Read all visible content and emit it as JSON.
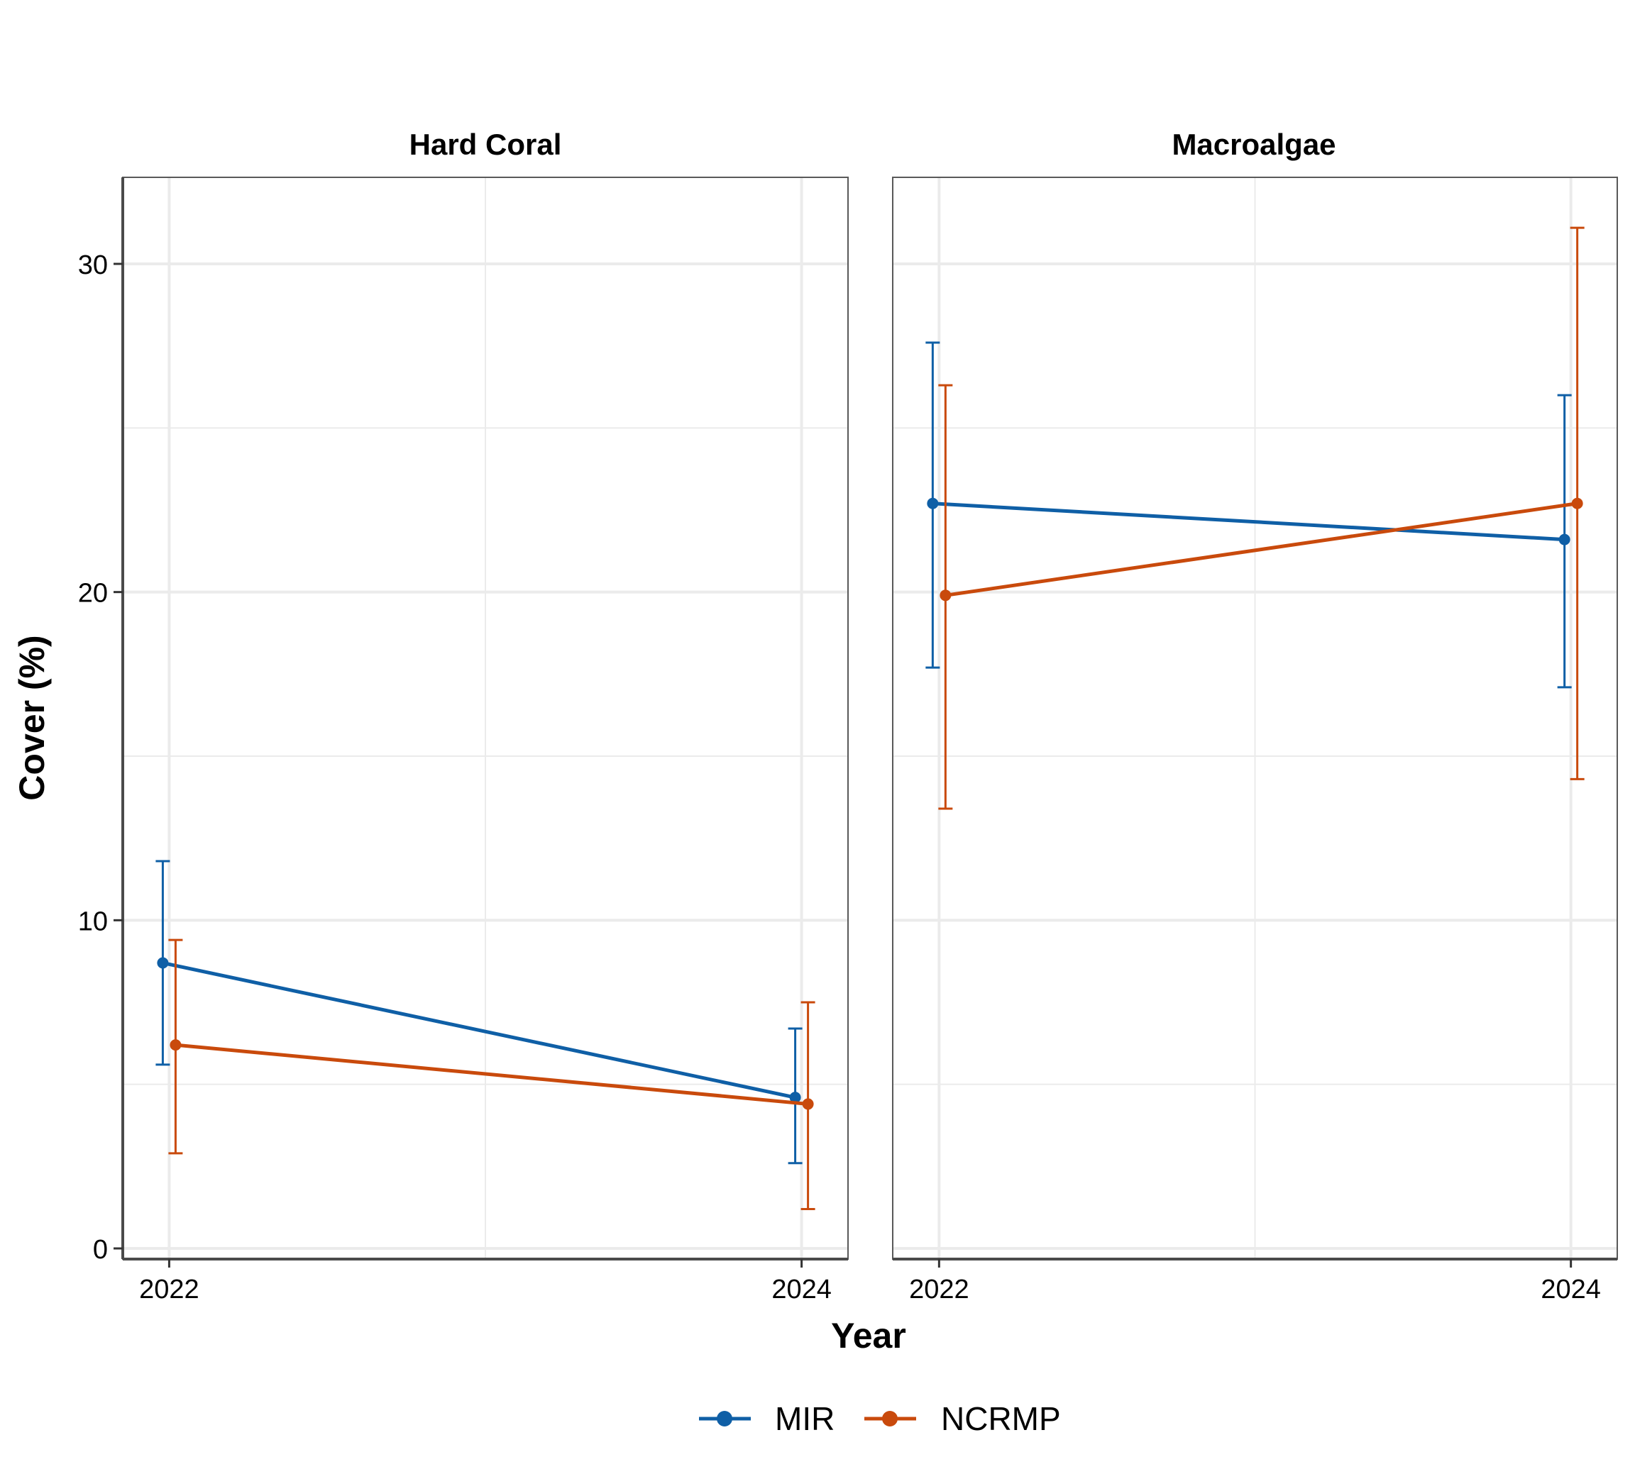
{
  "chart_data": {
    "type": "line",
    "facets": [
      "Hard Coral",
      "Macroalgae"
    ],
    "x": [
      "2022",
      "2024"
    ],
    "xlabel": "Year",
    "ylabel": "Cover (%)",
    "ylim": [
      0,
      32
    ],
    "yticks": [
      0,
      10,
      20,
      30
    ],
    "grid": true,
    "legend_position": "bottom",
    "error_bars": true,
    "series": [
      {
        "name": "MIR",
        "color": "#0F5FA6",
        "panels": {
          "Hard Coral": [
            {
              "x": "2022",
              "y": 8.7,
              "lo": 5.6,
              "hi": 11.8
            },
            {
              "x": "2024",
              "y": 4.6,
              "lo": 2.6,
              "hi": 6.7
            }
          ],
          "Macroalgae": [
            {
              "x": "2022",
              "y": 22.7,
              "lo": 17.7,
              "hi": 27.6
            },
            {
              "x": "2024",
              "y": 21.6,
              "lo": 17.1,
              "hi": 26.0
            }
          ]
        }
      },
      {
        "name": "NCRMP",
        "color": "#C94A0C",
        "panels": {
          "Hard Coral": [
            {
              "x": "2022",
              "y": 6.2,
              "lo": 2.9,
              "hi": 9.4
            },
            {
              "x": "2024",
              "y": 4.4,
              "lo": 1.2,
              "hi": 7.5
            }
          ],
          "Macroalgae": [
            {
              "x": "2022",
              "y": 19.9,
              "lo": 13.4,
              "hi": 26.3
            },
            {
              "x": "2024",
              "y": 22.7,
              "lo": 14.3,
              "hi": 31.1
            }
          ]
        }
      }
    ]
  }
}
